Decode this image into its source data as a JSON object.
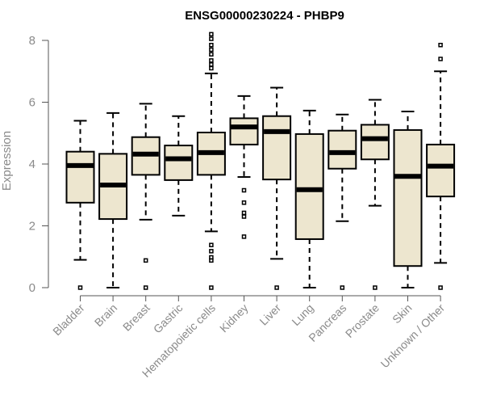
{
  "chart_data": {
    "type": "boxplot",
    "title": "ENSG00000230224 - PHBP9",
    "ylabel": "Expression",
    "xlabel": "",
    "ylim": [
      0,
      8.3
    ],
    "yticks": [
      0,
      2,
      4,
      6,
      8
    ],
    "grid": false,
    "legend": "none",
    "box_fill": "#ede6cf",
    "box_stroke": "#000000",
    "median_color": "#000000",
    "axis_text_color": "#8a8a8a",
    "categories": [
      "Bladder",
      "Brain",
      "Breast",
      "Gastric",
      "Hematopoietic cells",
      "Kidney",
      "Liver",
      "Lung",
      "Pancreas",
      "Prostate",
      "Skin",
      "Unknown / Other"
    ],
    "boxes": [
      {
        "q1": 2.75,
        "median": 3.95,
        "q3": 4.4,
        "whisker_low": 0.9,
        "whisker_high": 5.4,
        "outliers": [
          0.0
        ]
      },
      {
        "q1": 2.22,
        "median": 3.32,
        "q3": 4.33,
        "whisker_low": 0.0,
        "whisker_high": 5.65,
        "outliers": []
      },
      {
        "q1": 3.65,
        "median": 4.32,
        "q3": 4.87,
        "whisker_low": 2.2,
        "whisker_high": 5.95,
        "outliers": [
          0.88,
          0.0
        ]
      },
      {
        "q1": 3.48,
        "median": 4.17,
        "q3": 4.6,
        "whisker_low": 2.33,
        "whisker_high": 5.55,
        "outliers": []
      },
      {
        "q1": 3.65,
        "median": 4.37,
        "q3": 5.02,
        "whisker_low": 1.82,
        "whisker_high": 6.93,
        "outliers": [
          8.2,
          8.05,
          7.85,
          7.7,
          7.55,
          7.35,
          7.22,
          7.1,
          1.38,
          1.18,
          0.98,
          0.88,
          0.0
        ]
      },
      {
        "q1": 4.63,
        "median": 5.2,
        "q3": 5.48,
        "whisker_low": 3.58,
        "whisker_high": 6.2,
        "outliers": [
          3.15,
          2.75,
          2.42,
          2.3,
          1.65
        ]
      },
      {
        "q1": 3.5,
        "median": 5.05,
        "q3": 5.55,
        "whisker_low": 0.93,
        "whisker_high": 6.47,
        "outliers": [
          0.0
        ]
      },
      {
        "q1": 1.57,
        "median": 3.17,
        "q3": 4.97,
        "whisker_low": 0.0,
        "whisker_high": 5.73,
        "outliers": []
      },
      {
        "q1": 3.85,
        "median": 4.37,
        "q3": 5.08,
        "whisker_low": 2.15,
        "whisker_high": 5.6,
        "outliers": [
          0.0
        ]
      },
      {
        "q1": 4.15,
        "median": 4.82,
        "q3": 5.27,
        "whisker_low": 2.65,
        "whisker_high": 6.08,
        "outliers": [
          0.0
        ]
      },
      {
        "q1": 0.7,
        "median": 3.6,
        "q3": 5.1,
        "whisker_low": 0.0,
        "whisker_high": 5.7,
        "outliers": []
      },
      {
        "q1": 2.95,
        "median": 3.93,
        "q3": 4.63,
        "whisker_low": 0.8,
        "whisker_high": 7.0,
        "outliers": [
          7.85,
          7.4,
          0.0
        ]
      }
    ]
  }
}
